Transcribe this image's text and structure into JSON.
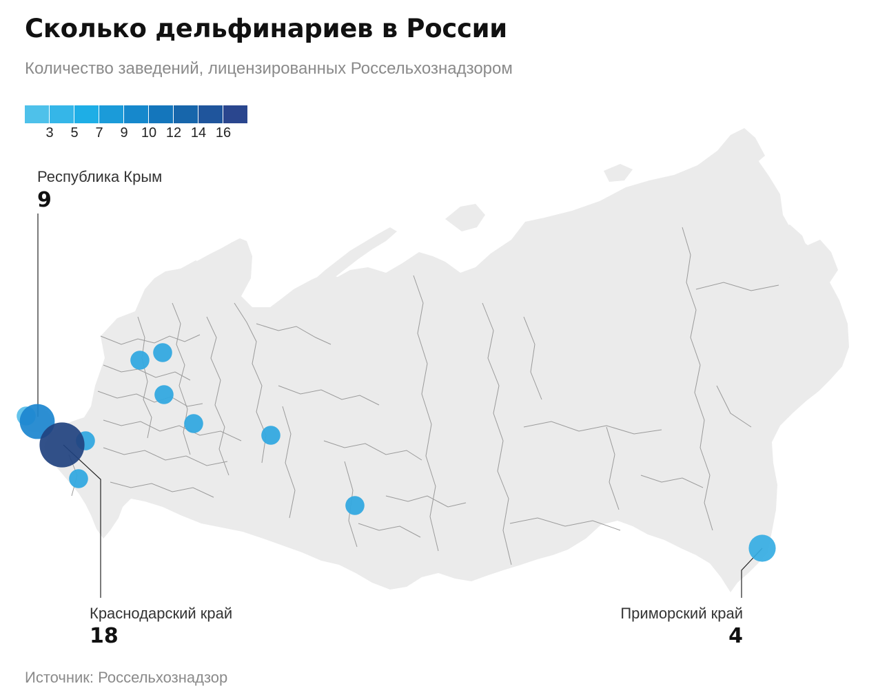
{
  "title": "Сколько дельфинариев в России",
  "subtitle": "Количество заведений, лицензированных Россельхознадзором",
  "legend": {
    "colors": [
      "#4ec1ea",
      "#35b6e8",
      "#1eaee6",
      "#1b9bd9",
      "#1688cc",
      "#1476bc",
      "#1766ab",
      "#1f559c",
      "#2a468e"
    ],
    "ticks": [
      "3",
      "5",
      "7",
      "9",
      "10",
      "12",
      "14",
      "16"
    ]
  },
  "map": {
    "land_color": "#ebebeb",
    "border_color": "#9a9a9a",
    "markers": [
      {
        "region": "Республика Крым",
        "value": 9,
        "color": "#1b86cf"
      },
      {
        "region": "Краснодарский край",
        "value": 18,
        "color": "#21427f"
      },
      {
        "region": "Приморский край",
        "value": 4,
        "color": "#35ace3"
      },
      {
        "value": 1,
        "color": "#5cc0ea"
      },
      {
        "value": 1,
        "color": "#34a9e0"
      },
      {
        "value": 1,
        "color": "#34a9e0"
      },
      {
        "value": 1,
        "color": "#34a9e0"
      },
      {
        "value": 1,
        "color": "#34a9e0"
      },
      {
        "value": 1,
        "color": "#34a9e0"
      },
      {
        "value": 1,
        "color": "#34a9e0"
      },
      {
        "value": 1,
        "color": "#34a9e0"
      },
      {
        "value": 1,
        "color": "#34a9e0"
      }
    ]
  },
  "callouts": {
    "crimea": {
      "name": "Республика Крым",
      "value": "9"
    },
    "krasnodar": {
      "name": "Краснодарский край",
      "value": "18"
    },
    "primorsky": {
      "name": "Приморский край",
      "value": "4"
    }
  },
  "source": "Источник: Россельхознадзор"
}
